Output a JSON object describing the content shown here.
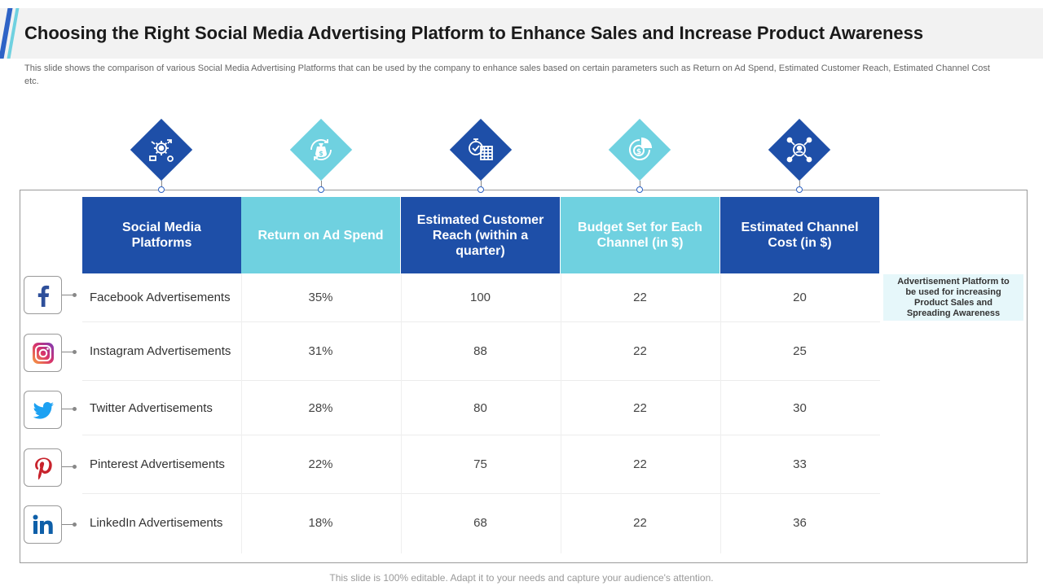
{
  "title": "Choosing the Right Social Media Advertising Platform to Enhance Sales and Increase Product Awareness",
  "subtitle": "This slide shows the comparison of various Social Media Advertising Platforms that can be used by the company to enhance sales based on certain parameters such as Return on Ad Spend, Estimated Customer Reach, Estimated Channel Cost etc.",
  "header_icons": [
    "strategy-gears-icon",
    "money-bag-cycle-icon",
    "stopwatch-calendar-icon",
    "dollar-pie-chart-icon",
    "user-network-icon"
  ],
  "colors": {
    "dark": "#1e4fa8",
    "light": "#6fd1e0",
    "accent": "#2e63c6",
    "note_bg": "#e6f7fa"
  },
  "table": {
    "headers": [
      "Social Media Platforms",
      "Return on Ad Spend",
      "Estimated Customer Reach (within a quarter)",
      "Budget Set for Each Channel (in $)",
      "Estimated Channel Cost (in $)"
    ],
    "rows": [
      {
        "icon": "facebook-icon",
        "platform": "Facebook Advertisements",
        "roas": "35%",
        "reach": "100",
        "budget": "22",
        "cost": "20"
      },
      {
        "icon": "instagram-icon",
        "platform": "Instagram Advertisements",
        "roas": "31%",
        "reach": "88",
        "budget": "22",
        "cost": "25"
      },
      {
        "icon": "twitter-icon",
        "platform": "Twitter Advertisements",
        "roas": "28%",
        "reach": "80",
        "budget": "22",
        "cost": "30"
      },
      {
        "icon": "pinterest-icon",
        "platform": "Pinterest Advertisements",
        "roas": "22%",
        "reach": "75",
        "budget": "22",
        "cost": "33"
      },
      {
        "icon": "linkedin-icon",
        "platform": "LinkedIn Advertisements",
        "roas": "18%",
        "reach": "68",
        "budget": "22",
        "cost": "36"
      }
    ]
  },
  "note": "Advertisement Platform to be used for increasing Product Sales and Spreading Awareness",
  "footer": "This slide is 100% editable. Adapt it to your needs and capture your audience's attention."
}
